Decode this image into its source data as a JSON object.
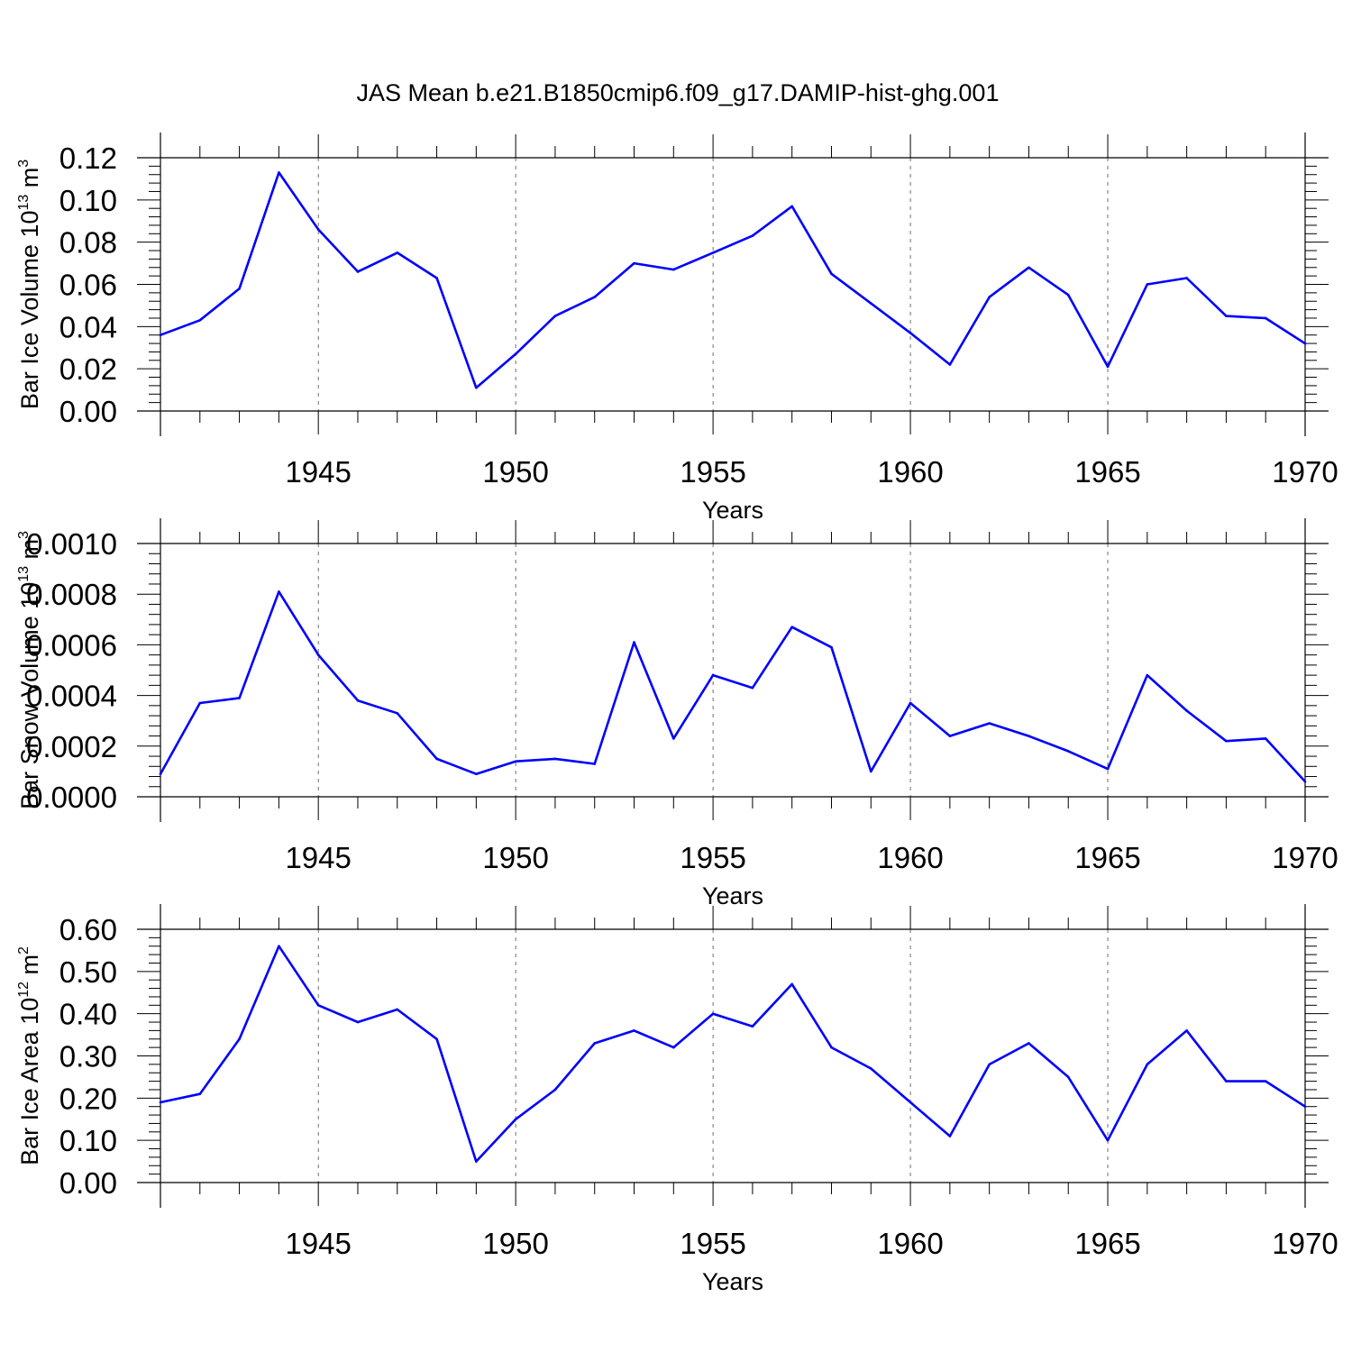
{
  "title": "JAS Mean b.e21.B1850cmip6.f09_g17.DAMIP-hist-ghg.001",
  "colors": {
    "line": "#0000ff",
    "axis": "#000000",
    "grid": "#000000"
  },
  "chart_data": [
    {
      "type": "line",
      "panel": "top",
      "ylabel": {
        "text": "Bar Ice Volume 10",
        "sup1": "13",
        "unit": " m",
        "sup2": "3"
      },
      "xlabel": "Years",
      "xlim": [
        1941,
        1970
      ],
      "ylim": [
        0,
        0.12
      ],
      "yticks": [
        0.0,
        0.02,
        0.04,
        0.06,
        0.08,
        0.1,
        0.12
      ],
      "ytick_labels": [
        "0.00",
        "0.02",
        "0.04",
        "0.06",
        "0.08",
        "0.10",
        "0.12"
      ],
      "xticks": [
        1945,
        1950,
        1955,
        1960,
        1965,
        1970
      ],
      "xtick_labels": [
        "1945",
        "1950",
        "1955",
        "1960",
        "1965",
        "1970"
      ],
      "grid_x": [
        1945,
        1950,
        1955,
        1960,
        1965
      ],
      "x": [
        1941,
        1942,
        1943,
        1944,
        1945,
        1946,
        1947,
        1948,
        1949,
        1950,
        1951,
        1952,
        1953,
        1954,
        1955,
        1956,
        1957,
        1958,
        1959,
        1960,
        1961,
        1962,
        1963,
        1964,
        1965,
        1966,
        1967,
        1968,
        1969,
        1970
      ],
      "values": [
        0.036,
        0.043,
        0.058,
        0.113,
        0.086,
        0.066,
        0.075,
        0.063,
        0.011,
        0.027,
        0.045,
        0.054,
        0.07,
        0.067,
        0.075,
        0.083,
        0.097,
        0.065,
        0.051,
        0.037,
        0.022,
        0.054,
        0.068,
        0.055,
        0.021,
        0.06,
        0.063,
        0.045,
        0.044,
        0.032
      ]
    },
    {
      "type": "line",
      "panel": "middle",
      "ylabel": {
        "text": "Bar Snow Volume 10",
        "sup1": "13",
        "unit": " m",
        "sup2": "3"
      },
      "xlabel": "Years",
      "xlim": [
        1941,
        1970
      ],
      "ylim": [
        0,
        0.001
      ],
      "yticks": [
        0.0,
        0.0002,
        0.0004,
        0.0006,
        0.0008,
        0.001
      ],
      "ytick_labels": [
        "0.0000",
        "0.0002",
        "0.0004",
        "0.0006",
        "0.0008",
        "0.0010"
      ],
      "xticks": [
        1945,
        1950,
        1955,
        1960,
        1965,
        1970
      ],
      "xtick_labels": [
        "1945",
        "1950",
        "1955",
        "1960",
        "1965",
        "1970"
      ],
      "grid_x": [
        1945,
        1950,
        1955,
        1960,
        1965
      ],
      "x": [
        1941,
        1942,
        1943,
        1944,
        1945,
        1946,
        1947,
        1948,
        1949,
        1950,
        1951,
        1952,
        1953,
        1954,
        1955,
        1956,
        1957,
        1958,
        1959,
        1960,
        1961,
        1962,
        1963,
        1964,
        1965,
        1966,
        1967,
        1968,
        1969,
        1970
      ],
      "values": [
        9e-05,
        0.00037,
        0.00039,
        0.00081,
        0.00056,
        0.00038,
        0.00033,
        0.00015,
        9e-05,
        0.00014,
        0.00015,
        0.00013,
        0.00061,
        0.00023,
        0.00048,
        0.00043,
        0.00067,
        0.00059,
        0.0001,
        0.00037,
        0.00024,
        0.00029,
        0.00024,
        0.00018,
        0.00011,
        0.00048,
        0.00034,
        0.00022,
        0.00023,
        6e-05
      ]
    },
    {
      "type": "line",
      "panel": "bottom",
      "ylabel": {
        "text": "Bar Ice Area 10",
        "sup1": "12",
        "unit": " m",
        "sup2": "2"
      },
      "xlabel": "Years",
      "xlim": [
        1941,
        1970
      ],
      "ylim": [
        0,
        0.6
      ],
      "yticks": [
        0.0,
        0.1,
        0.2,
        0.3,
        0.4,
        0.5,
        0.6
      ],
      "ytick_labels": [
        "0.00",
        "0.10",
        "0.20",
        "0.30",
        "0.40",
        "0.50",
        "0.60"
      ],
      "xticks": [
        1945,
        1950,
        1955,
        1960,
        1965,
        1970
      ],
      "xtick_labels": [
        "1945",
        "1950",
        "1955",
        "1960",
        "1965",
        "1970"
      ],
      "grid_x": [
        1945,
        1950,
        1955,
        1960,
        1965
      ],
      "x": [
        1941,
        1942,
        1943,
        1944,
        1945,
        1946,
        1947,
        1948,
        1949,
        1950,
        1951,
        1952,
        1953,
        1954,
        1955,
        1956,
        1957,
        1958,
        1959,
        1960,
        1961,
        1962,
        1963,
        1964,
        1965,
        1966,
        1967,
        1968,
        1969,
        1970
      ],
      "values": [
        0.19,
        0.21,
        0.34,
        0.56,
        0.42,
        0.38,
        0.41,
        0.34,
        0.05,
        0.15,
        0.22,
        0.33,
        0.36,
        0.32,
        0.4,
        0.37,
        0.47,
        0.32,
        0.27,
        0.19,
        0.11,
        0.28,
        0.33,
        0.25,
        0.1,
        0.28,
        0.36,
        0.24,
        0.24,
        0.18
      ]
    }
  ]
}
